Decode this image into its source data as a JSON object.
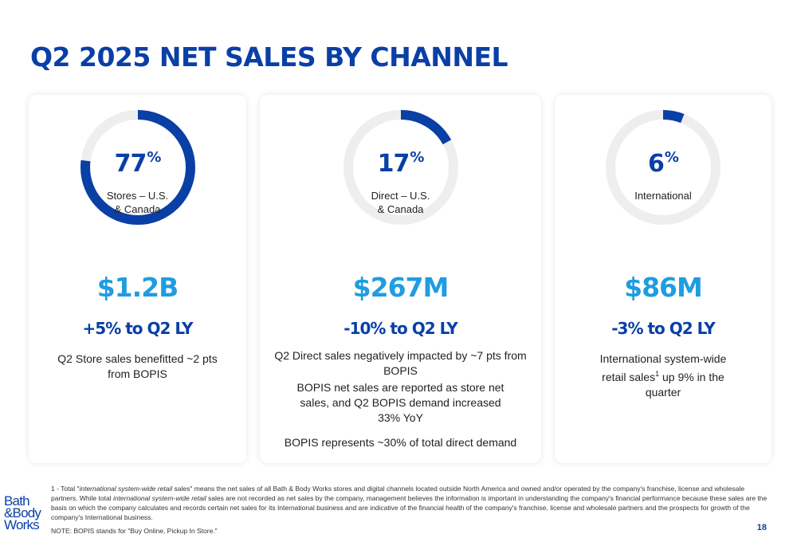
{
  "title": "Q2 2025 NET SALES BY CHANNEL",
  "colors": {
    "primary": "#0a3fa6",
    "accent": "#1f9de0",
    "track": "#eeeeee"
  },
  "cards": [
    {
      "percent_value": 77,
      "percent_number": "77",
      "percent_sign": "%",
      "segment_label": "Stores – U.S.\n& Canada",
      "sales": "$1.2B",
      "change": "+5% to Q2 LY",
      "body": [
        "Q2 Store sales benefitted ~2 pts from BOPIS"
      ]
    },
    {
      "percent_value": 17,
      "percent_number": "17",
      "percent_sign": "%",
      "segment_label": "Direct – U.S.\n& Canada",
      "sales": "$267M",
      "change": "-10% to Q2 LY",
      "body": [
        "Q2 Direct sales negatively impacted by ~7 pts from BOPIS",
        "BOPIS net sales are reported as store net sales, and Q2 BOPIS demand increased 33% YoY",
        "BOPIS represents ~30% of total direct demand"
      ]
    },
    {
      "percent_value": 6,
      "percent_number": "6",
      "percent_sign": "%",
      "segment_label": "International",
      "sales": "$86M",
      "change": "-3% to Q2 LY",
      "body_pre": "International system-wide retail sales",
      "body_sup": "1",
      "body_post": " up 9% in the quarter"
    }
  ],
  "footnote": {
    "prefix": "1 - Total \"",
    "italic1": "international system-wide retail",
    "middle": " sales\" means the net sales of all Bath & Body Works stores and digital channels located outside North America and owned and/or operated by the company's franchise, license and wholesale partners. While total ",
    "italic2": "international system-wide retail",
    "suffix": " sales are not recorded as net sales by the company, management believes the information is important in understanding the company's financial performance because these sales are the basis on which the company calculates and records certain net sales for its International business and are indicative of the financial health of the company's franchise, license and wholesale partners and the prospects for growth of the company's International business."
  },
  "note": "NOTE: BOPIS stands for \"Buy Online, Pickup In Store.\"",
  "page_number": "18",
  "logo": {
    "line1": "Bath",
    "line2": "&Body",
    "line3": "Works"
  }
}
